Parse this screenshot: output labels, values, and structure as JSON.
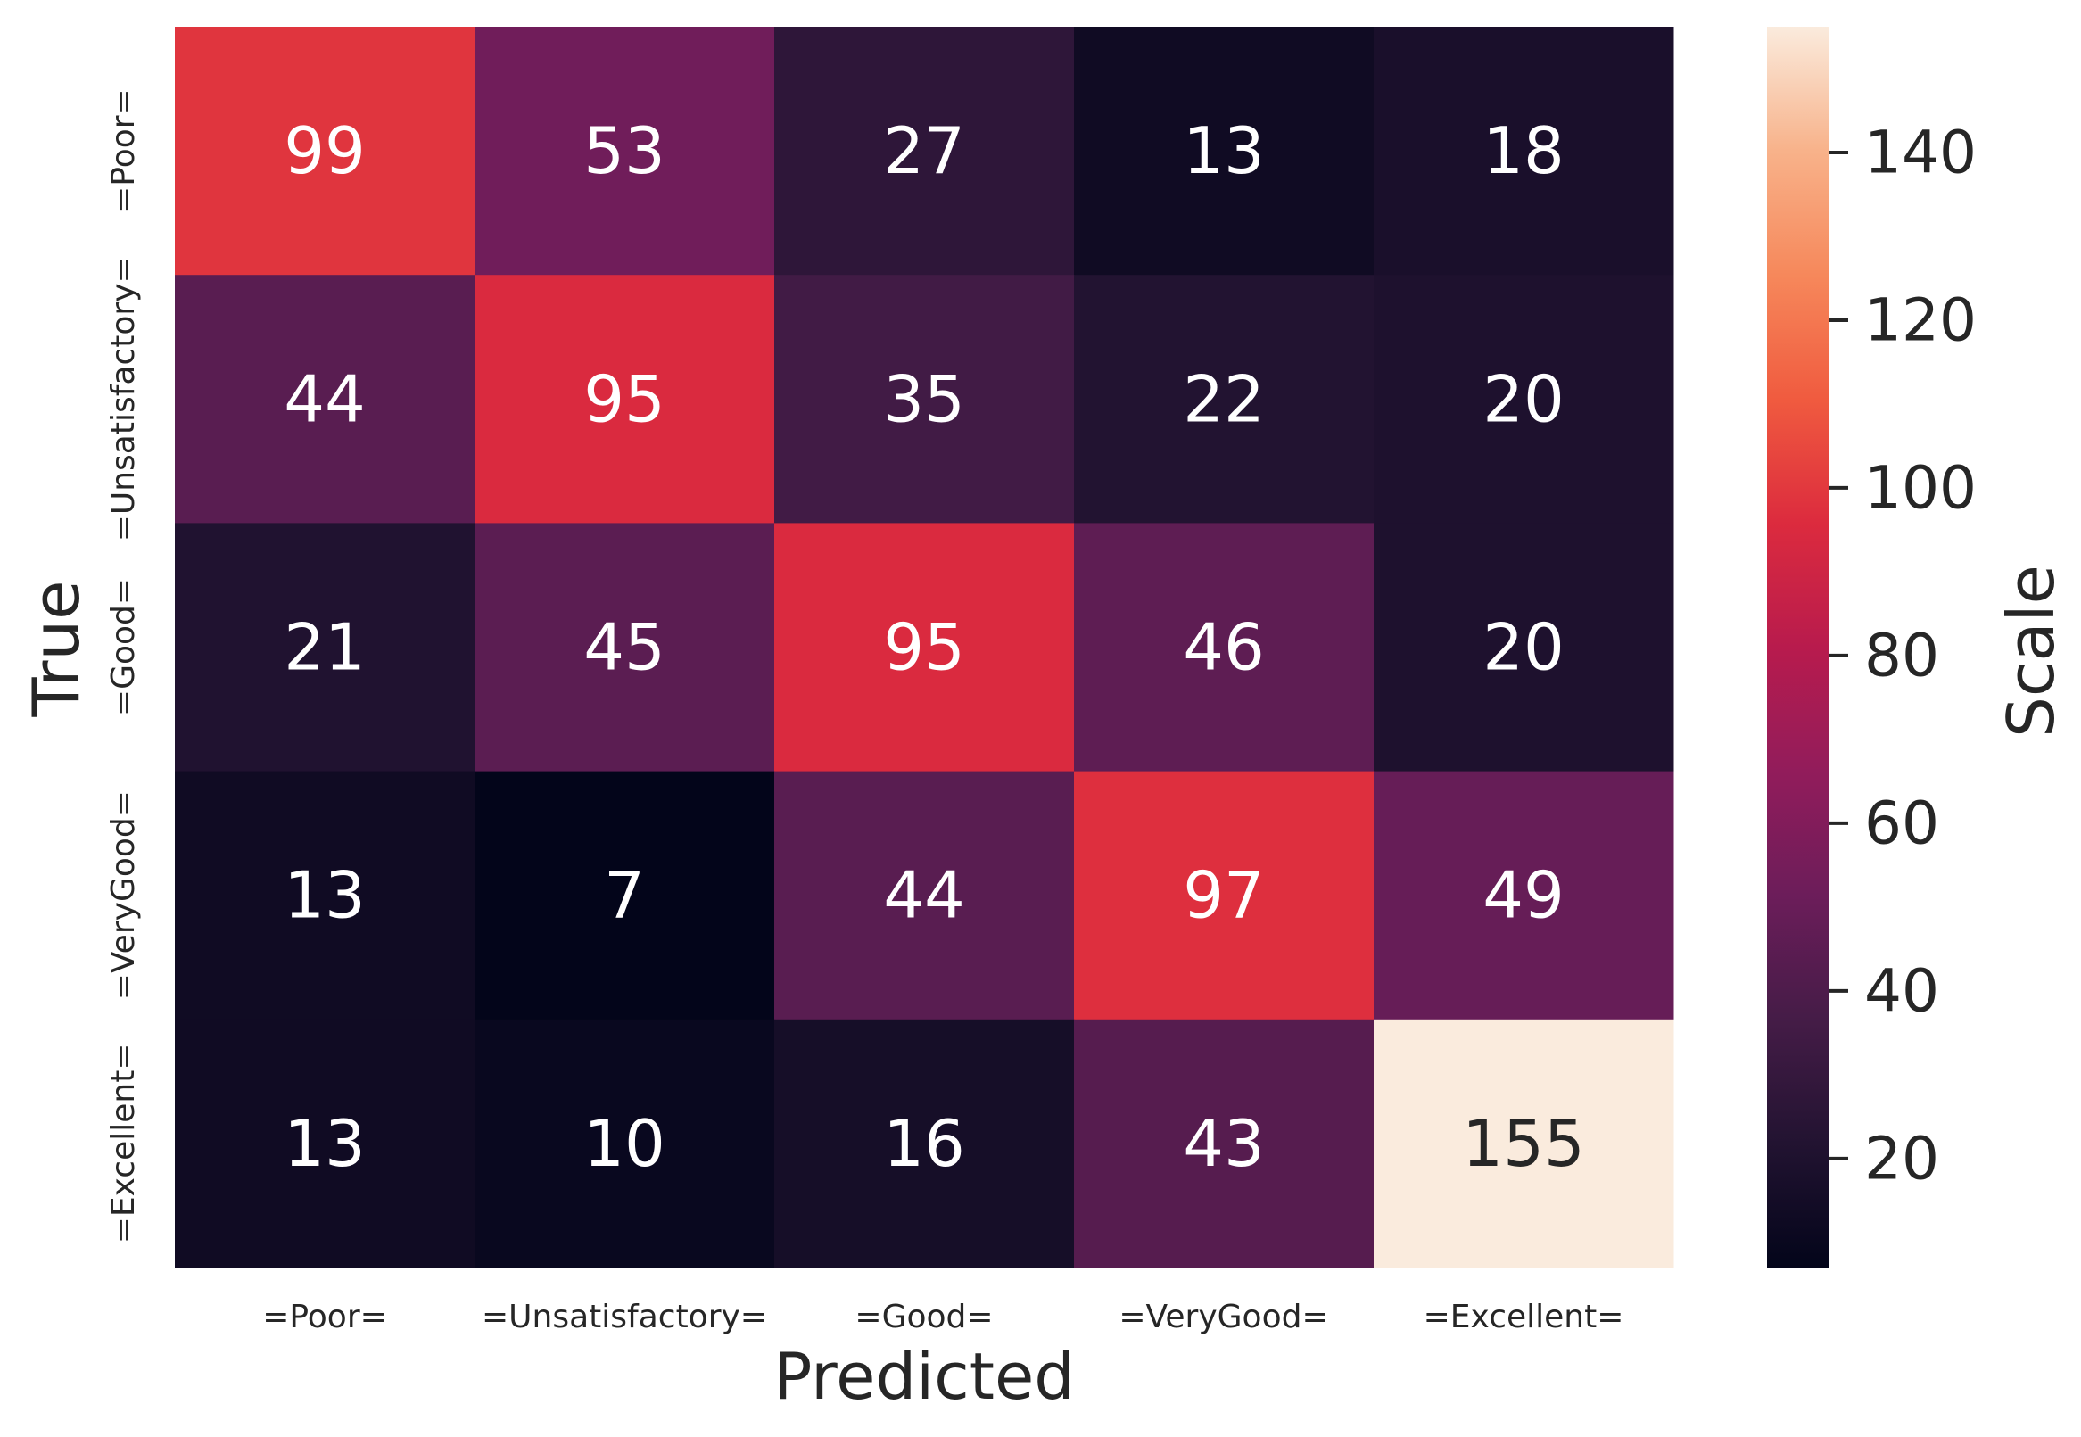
{
  "chart_data": {
    "type": "heatmap",
    "title": "",
    "xlabel": "Predicted",
    "ylabel": "True",
    "x_categories": [
      "=Poor=",
      "=Unsatisfactory=",
      "=Good=",
      "=VeryGood=",
      "=Excellent="
    ],
    "y_categories": [
      "=Poor=",
      "=Unsatisfactory=",
      "=Good=",
      "=VeryGood=",
      "=Excellent="
    ],
    "values": [
      [
        99,
        53,
        27,
        13,
        18
      ],
      [
        44,
        95,
        35,
        22,
        20
      ],
      [
        21,
        45,
        95,
        46,
        20
      ],
      [
        13,
        7,
        44,
        97,
        49
      ],
      [
        13,
        10,
        16,
        43,
        155
      ]
    ],
    "colormap": "rocket",
    "vmin": 7,
    "vmax": 155,
    "colorbar": {
      "label": "Scale",
      "ticks": [
        20,
        40,
        60,
        80,
        100,
        120,
        140
      ]
    },
    "annotations": true,
    "grid": false
  }
}
